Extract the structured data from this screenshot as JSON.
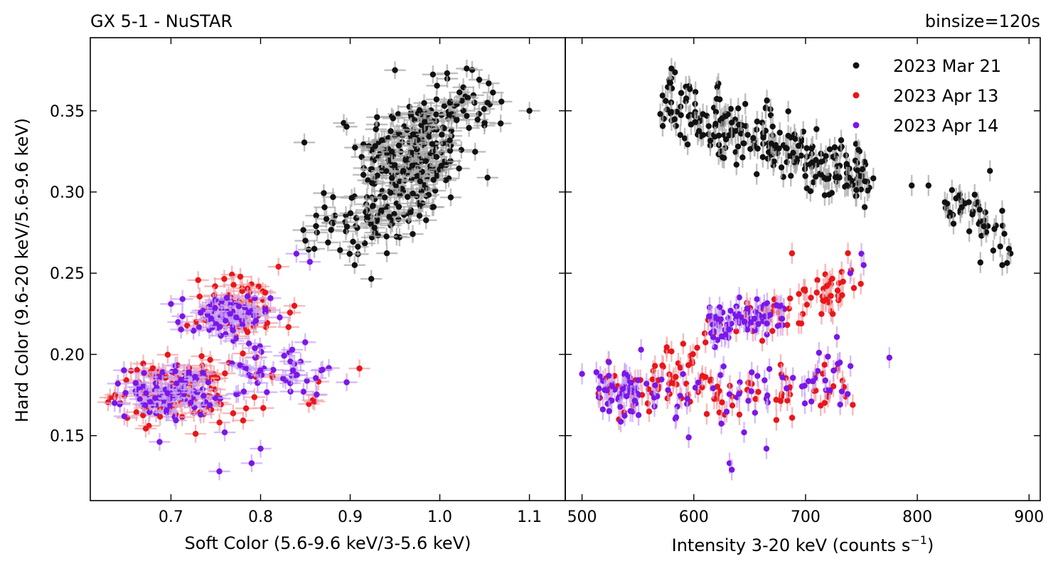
{
  "figure": {
    "title_left": "GX 5-1 - NuSTAR",
    "title_right": "binsize=120s"
  },
  "chart_data": [
    {
      "type": "scatter",
      "panel": "left",
      "xlabel": "Soft Color (5.6-9.6 keV/3-5.6 keV)",
      "ylabel": "Hard Color (9.6-20 keV/5.6-9.6 keV)",
      "xlim": [
        0.61,
        1.14
      ],
      "ylim": [
        0.11,
        0.395
      ],
      "xticks": [
        0.7,
        0.8,
        0.9,
        1.0,
        1.1
      ],
      "xtick_labels": [
        "0.7",
        "0.8",
        "0.9",
        "1.0",
        "1.1"
      ],
      "yticks": [
        0.15,
        0.2,
        0.25,
        0.3,
        0.35
      ],
      "ytick_labels": [
        "0.15",
        "0.20",
        "0.25",
        "0.30",
        "0.35"
      ],
      "series": [
        {
          "name": "2023 Mar 21",
          "color": "#111111",
          "errcolor": "#aaaaaa",
          "clusters": [
            {
              "cx": 0.97,
              "cy": 0.322,
              "sx": 0.03,
              "sy": 0.018,
              "n": 230
            },
            {
              "cx": 0.925,
              "cy": 0.285,
              "sx": 0.025,
              "sy": 0.012,
              "n": 70
            },
            {
              "cx": 1.03,
              "cy": 0.355,
              "sx": 0.025,
              "sy": 0.01,
              "n": 40
            },
            {
              "cx": 0.88,
              "cy": 0.273,
              "sx": 0.02,
              "sy": 0.006,
              "n": 10
            }
          ],
          "points": [
            {
              "x": 0.95,
              "y": 0.375
            },
            {
              "x": 1.03,
              "y": 0.376
            },
            {
              "x": 0.905,
              "y": 0.255
            },
            {
              "x": 0.86,
              "y": 0.265
            },
            {
              "x": 1.1,
              "y": 0.35
            },
            {
              "x": 0.85,
              "y": 0.27
            }
          ]
        },
        {
          "name": "2023 Apr 13",
          "color": "#e8161a",
          "errcolor": "#f4a3a6",
          "clusters": [
            {
              "cx": 0.7,
              "cy": 0.177,
              "sx": 0.03,
              "sy": 0.009,
              "n": 110
            },
            {
              "cx": 0.78,
              "cy": 0.228,
              "sx": 0.03,
              "sy": 0.01,
              "n": 70
            },
            {
              "cx": 0.76,
              "cy": 0.178,
              "sx": 0.05,
              "sy": 0.01,
              "n": 30
            }
          ],
          "points": [
            {
              "x": 0.862,
              "y": 0.175
            },
            {
              "x": 0.86,
              "y": 0.171
            },
            {
              "x": 0.82,
              "y": 0.254
            }
          ]
        },
        {
          "name": "2023 Apr 14",
          "color": "#7b16e8",
          "errcolor": "#c8a6f4",
          "clusters": [
            {
              "cx": 0.7,
              "cy": 0.177,
              "sx": 0.025,
              "sy": 0.008,
              "n": 90
            },
            {
              "cx": 0.76,
              "cy": 0.222,
              "sx": 0.025,
              "sy": 0.008,
              "n": 70
            },
            {
              "cx": 0.82,
              "cy": 0.19,
              "sx": 0.04,
              "sy": 0.008,
              "n": 45
            }
          ],
          "points": [
            {
              "x": 0.754,
              "y": 0.128
            },
            {
              "x": 0.79,
              "y": 0.133
            },
            {
              "x": 0.8,
              "y": 0.142
            },
            {
              "x": 0.76,
              "y": 0.152
            },
            {
              "x": 0.84,
              "y": 0.262
            },
            {
              "x": 0.855,
              "y": 0.257
            }
          ]
        }
      ]
    },
    {
      "type": "scatter",
      "panel": "right",
      "xlabel": "Intensity 3-20 keV (counts s",
      "xlabel_sup": "−1",
      "xlabel_end": ")",
      "ylim": [
        0.11,
        0.395
      ],
      "xlim": [
        485,
        910
      ],
      "xticks": [
        500,
        600,
        700,
        800,
        900
      ],
      "xtick_labels": [
        "500",
        "600",
        "700",
        "800",
        "900"
      ],
      "yticks": [
        0.15,
        0.2,
        0.25,
        0.3,
        0.35
      ],
      "legend": {
        "position": "top-right"
      },
      "series": [
        {
          "name": "2023 Mar 21",
          "color": "#111111",
          "errcolor": "#aaaaaa",
          "bands": [
            {
              "x0": 575,
              "x1": 760,
              "y0": 0.357,
              "y1": 0.305,
              "spread": 0.01,
              "n": 260
            },
            {
              "x0": 825,
              "x1": 880,
              "y0": 0.292,
              "y1": 0.272,
              "spread": 0.009,
              "n": 45
            }
          ],
          "points": [
            {
              "x": 580,
              "y": 0.376
            },
            {
              "x": 570,
              "y": 0.348
            },
            {
              "x": 795,
              "y": 0.304
            },
            {
              "x": 810,
              "y": 0.304
            },
            {
              "x": 865,
              "y": 0.313
            },
            {
              "x": 876,
              "y": 0.255
            },
            {
              "x": 882,
              "y": 0.265
            }
          ]
        },
        {
          "name": "2023 Apr 13",
          "color": "#e8161a",
          "errcolor": "#f4a3a6",
          "bands": [
            {
              "x0": 510,
              "x1": 740,
              "y0": 0.177,
              "y1": 0.178,
              "spread": 0.008,
              "n": 90
            },
            {
              "x0": 560,
              "x1": 620,
              "y0": 0.185,
              "y1": 0.21,
              "spread": 0.006,
              "n": 25
            },
            {
              "x0": 640,
              "x1": 745,
              "y0": 0.222,
              "y1": 0.243,
              "spread": 0.008,
              "n": 70
            }
          ],
          "points": [
            {
              "x": 533,
              "y": 0.16
            },
            {
              "x": 688,
              "y": 0.161
            }
          ]
        },
        {
          "name": "2023 Apr 14",
          "color": "#7b16e8",
          "errcolor": "#c8a6f4",
          "bands": [
            {
              "x0": 515,
              "x1": 555,
              "y0": 0.178,
              "y1": 0.176,
              "spread": 0.007,
              "n": 55
            },
            {
              "x0": 560,
              "x1": 745,
              "y0": 0.172,
              "y1": 0.19,
              "spread": 0.009,
              "n": 60
            },
            {
              "x0": 610,
              "x1": 680,
              "y0": 0.216,
              "y1": 0.227,
              "spread": 0.006,
              "n": 75
            }
          ],
          "points": [
            {
              "x": 500,
              "y": 0.188
            },
            {
              "x": 632,
              "y": 0.133
            },
            {
              "x": 634,
              "y": 0.129
            },
            {
              "x": 665,
              "y": 0.142
            },
            {
              "x": 645,
              "y": 0.152
            },
            {
              "x": 750,
              "y": 0.262
            },
            {
              "x": 752,
              "y": 0.255
            },
            {
              "x": 775,
              "y": 0.198
            },
            {
              "x": 740,
              "y": 0.25
            }
          ]
        }
      ]
    }
  ]
}
